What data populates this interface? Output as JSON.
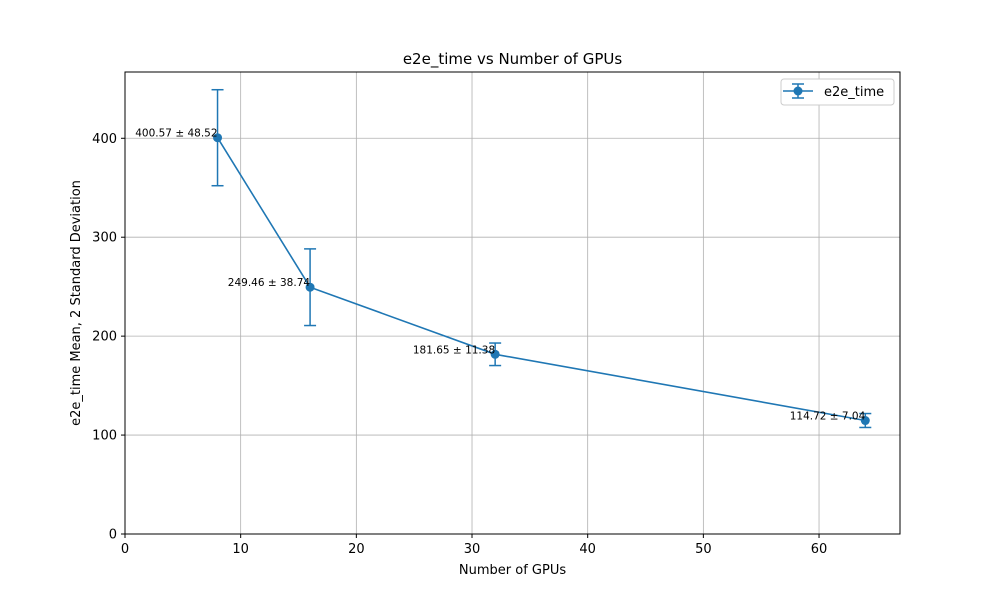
{
  "chart_data": {
    "type": "line",
    "title": "e2e_time vs Number of GPUs",
    "xlabel": "Number of GPUs",
    "ylabel": "e2e_time Mean, 2 Standard Deviation",
    "xlim": [
      0,
      67
    ],
    "ylim": [
      0,
      467
    ],
    "xticks": [
      0,
      10,
      20,
      30,
      40,
      50,
      60
    ],
    "yticks": [
      0,
      100,
      200,
      300,
      400
    ],
    "grid": true,
    "legend_position": "top-right",
    "color": "#1f77b4",
    "series": [
      {
        "name": "e2e_time",
        "x": [
          8,
          16,
          32,
          64
        ],
        "y": [
          400.57,
          249.46,
          181.65,
          114.72
        ],
        "error": [
          48.52,
          38.74,
          11.38,
          7.04
        ],
        "labels": [
          "400.57 ± 48.52",
          "249.46 ± 38.74",
          "181.65 ± 11.38",
          "114.72 ± 7.04"
        ]
      }
    ]
  }
}
